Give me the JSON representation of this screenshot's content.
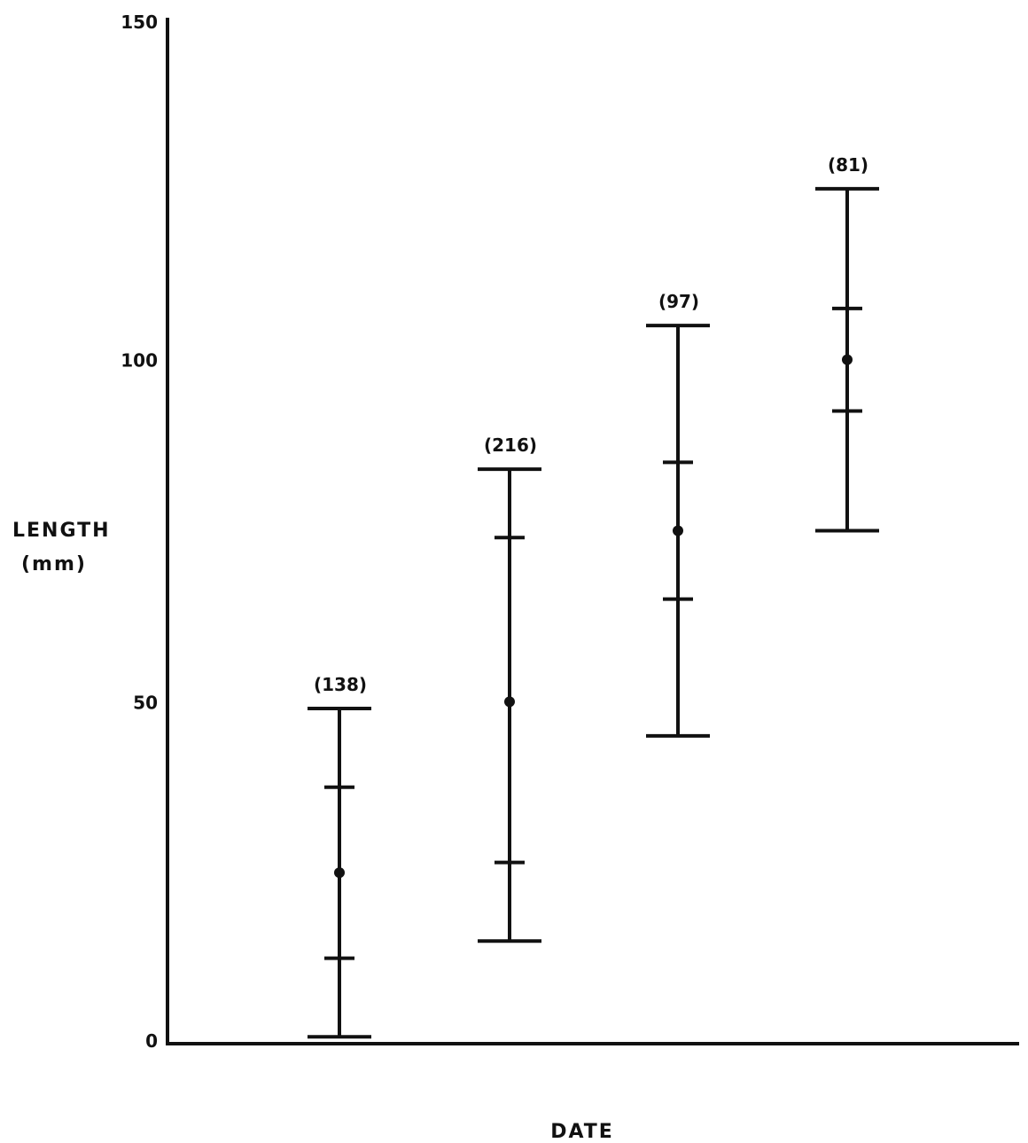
{
  "chart_data": {
    "type": "error-bar",
    "title": "",
    "xlabel": "DATE",
    "ylabel_lines": [
      "LENGTH",
      "(mm)"
    ],
    "ylim": [
      0,
      150
    ],
    "yticks": [
      0,
      50,
      100,
      150
    ],
    "yticklabels": [
      "0",
      "50",
      "100",
      "150"
    ],
    "grid": false,
    "legend": "none",
    "series": [
      {
        "points": [
          {
            "n_label": "(138)",
            "min": 1,
            "lower": 12.5,
            "mean": 25,
            "upper": 37.5,
            "max": 49
          },
          {
            "n_label": "(216)",
            "min": 15,
            "lower": 26.5,
            "mean": 50,
            "upper": 74,
            "max": 84
          },
          {
            "n_label": "(97)",
            "min": 45,
            "lower": 65,
            "mean": 75,
            "upper": 85,
            "max": 105
          },
          {
            "n_label": "(81)",
            "min": 75,
            "lower": 92.5,
            "mean": 100,
            "upper": 107.5,
            "max": 125
          }
        ]
      }
    ],
    "colors": {
      "ink": "#111111"
    }
  }
}
